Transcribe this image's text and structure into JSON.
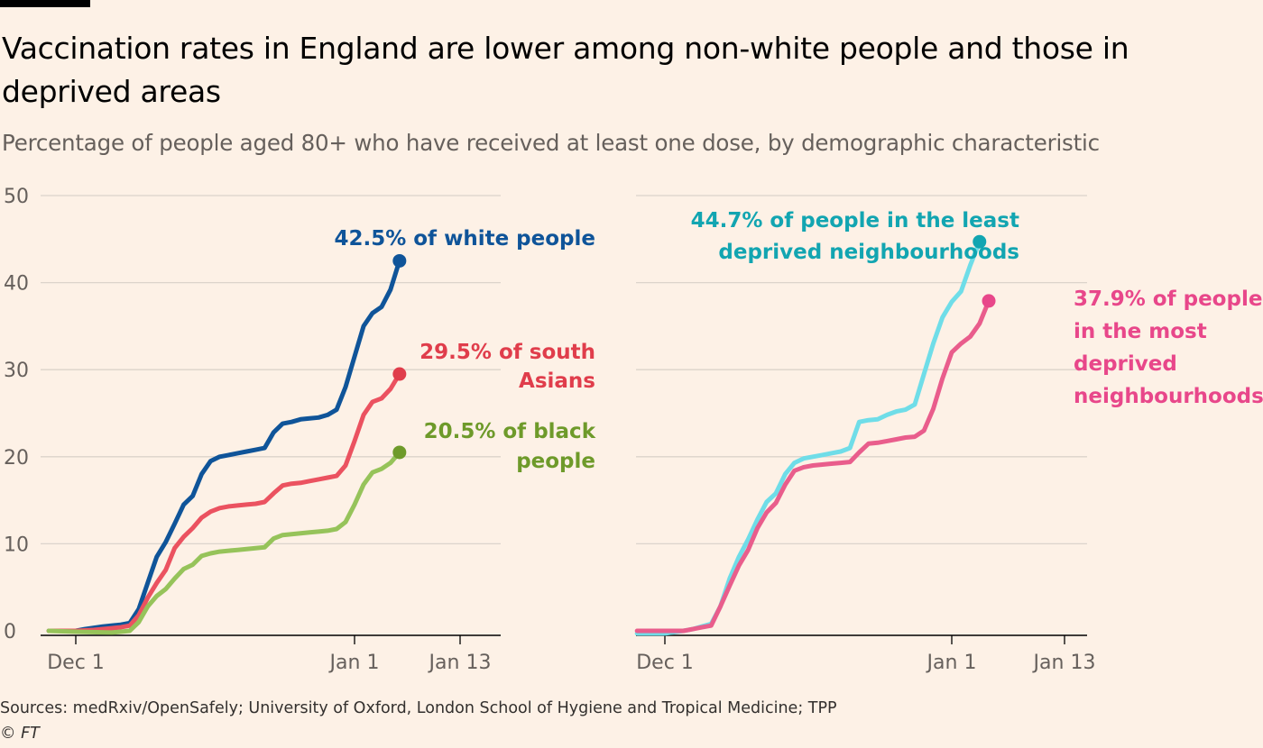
{
  "header": {
    "title": "Vaccination rates in England are lower among non-white people and those in deprived areas",
    "subtitle": "Percentage of people aged 80+ who have received at least one dose, by demographic characteristic"
  },
  "footer": {
    "source": "Sources: medRxiv/OpenSafely; University of Oxford, London School of Hygiene and Tropical Medicine; TPP",
    "copyright": "© FT"
  },
  "colors": {
    "background": "#fdf1e6",
    "white_people": "#0f5499",
    "south_asians": "#eb5260",
    "black_people": "#96c35a",
    "least_deprived": "#6fdde8",
    "most_deprived": "#e95d8c",
    "anno_white": "#0f5499",
    "anno_asian": "#e03d4b",
    "anno_black": "#6e9a2a",
    "anno_least": "#12a5b1",
    "anno_most": "#e8478a"
  },
  "chart_data": [
    {
      "type": "line",
      "x_ticks": [
        "Dec 1",
        "Jan 1",
        "Jan 13"
      ],
      "y_ticks": [
        "0",
        "10",
        "20",
        "30",
        "40",
        "50"
      ],
      "ylim": [
        0,
        50
      ],
      "grid": true,
      "series": [
        {
          "key": "white",
          "label": "42.5% of white people",
          "label_lines": [
            "42.5% of white people"
          ],
          "points": [
            [
              -3,
              0
            ],
            [
              0,
              0
            ],
            [
              1,
              0.2
            ],
            [
              3,
              0.5
            ],
            [
              5,
              0.7
            ],
            [
              6,
              0.9
            ],
            [
              7,
              2.5
            ],
            [
              8,
              5.5
            ],
            [
              9,
              8.5
            ],
            [
              10,
              10.2
            ],
            [
              11,
              12.3
            ],
            [
              12,
              14.5
            ],
            [
              13,
              15.5
            ],
            [
              14,
              18
            ],
            [
              15,
              19.5
            ],
            [
              16,
              20
            ],
            [
              17,
              20.2
            ],
            [
              18,
              20.4
            ],
            [
              19,
              20.6
            ],
            [
              20,
              20.8
            ],
            [
              21,
              21
            ],
            [
              22,
              22.8
            ],
            [
              23,
              23.8
            ],
            [
              24,
              24
            ],
            [
              25,
              24.3
            ],
            [
              26,
              24.4
            ],
            [
              27,
              24.5
            ],
            [
              28,
              24.8
            ],
            [
              29,
              25.4
            ],
            [
              30,
              28
            ],
            [
              31,
              31.5
            ],
            [
              32,
              35
            ],
            [
              33,
              36.5
            ],
            [
              34,
              37.2
            ],
            [
              35,
              39.2
            ],
            [
              36,
              42.5
            ]
          ]
        },
        {
          "key": "asian",
          "label": "29.5% of south Asians",
          "label_lines": [
            "29.5% of south",
            "Asians"
          ],
          "points": [
            [
              -3,
              0
            ],
            [
              0,
              0
            ],
            [
              2,
              0.1
            ],
            [
              4,
              0.3
            ],
            [
              5,
              0.4
            ],
            [
              6,
              0.6
            ],
            [
              7,
              1.8
            ],
            [
              8,
              3.8
            ],
            [
              9,
              5.5
            ],
            [
              10,
              7
            ],
            [
              11,
              9.5
            ],
            [
              12,
              10.8
            ],
            [
              13,
              11.8
            ],
            [
              14,
              13
            ],
            [
              15,
              13.7
            ],
            [
              16,
              14.1
            ],
            [
              17,
              14.3
            ],
            [
              18,
              14.4
            ],
            [
              19,
              14.5
            ],
            [
              20,
              14.6
            ],
            [
              21,
              14.8
            ],
            [
              22,
              15.8
            ],
            [
              23,
              16.7
            ],
            [
              24,
              16.9
            ],
            [
              25,
              17
            ],
            [
              26,
              17.2
            ],
            [
              27,
              17.4
            ],
            [
              28,
              17.6
            ],
            [
              29,
              17.8
            ],
            [
              30,
              19
            ],
            [
              31,
              21.8
            ],
            [
              32,
              24.8
            ],
            [
              33,
              26.3
            ],
            [
              34,
              26.7
            ],
            [
              35,
              27.8
            ],
            [
              36,
              29.5
            ]
          ]
        },
        {
          "key": "black",
          "label": "20.5% of black people",
          "label_lines": [
            "20.5% of black",
            "people"
          ],
          "points": [
            [
              -3,
              0
            ],
            [
              0,
              -0.1
            ],
            [
              4,
              -0.2
            ],
            [
              5,
              -0.1
            ],
            [
              6,
              0
            ],
            [
              7,
              1
            ],
            [
              8,
              2.8
            ],
            [
              9,
              4
            ],
            [
              10,
              4.8
            ],
            [
              11,
              6
            ],
            [
              12,
              7.1
            ],
            [
              13,
              7.6
            ],
            [
              14,
              8.6
            ],
            [
              15,
              8.9
            ],
            [
              16,
              9.1
            ],
            [
              17,
              9.2
            ],
            [
              18,
              9.3
            ],
            [
              19,
              9.4
            ],
            [
              20,
              9.5
            ],
            [
              21,
              9.6
            ],
            [
              22,
              10.6
            ],
            [
              23,
              11
            ],
            [
              24,
              11.1
            ],
            [
              25,
              11.2
            ],
            [
              26,
              11.3
            ],
            [
              27,
              11.4
            ],
            [
              28,
              11.5
            ],
            [
              29,
              11.7
            ],
            [
              30,
              12.5
            ],
            [
              31,
              14.5
            ],
            [
              32,
              16.8
            ],
            [
              33,
              18.2
            ],
            [
              34,
              18.6
            ],
            [
              35,
              19.3
            ],
            [
              36,
              20.5
            ]
          ]
        }
      ]
    },
    {
      "type": "line",
      "x_ticks": [
        "Dec 1",
        "Jan 1",
        "Jan 13"
      ],
      "y_ticks": [
        "0",
        "10",
        "20",
        "30",
        "40",
        "50"
      ],
      "ylim": [
        0,
        50
      ],
      "grid": true,
      "series": [
        {
          "key": "least",
          "label": "44.7% of people in the least deprived neighbourhoods",
          "label_lines": [
            "44.7% of people in the least",
            "deprived neighbourhoods"
          ],
          "points": [
            [
              -3,
              -0.3
            ],
            [
              0,
              -0.3
            ],
            [
              2,
              0
            ],
            [
              3,
              0.2
            ],
            [
              4,
              0.5
            ],
            [
              5,
              0.8
            ],
            [
              6,
              2.8
            ],
            [
              7,
              6
            ],
            [
              8,
              8.5
            ],
            [
              9,
              10.5
            ],
            [
              10,
              12.8
            ],
            [
              11,
              14.8
            ],
            [
              12,
              15.8
            ],
            [
              13,
              18
            ],
            [
              14,
              19.3
            ],
            [
              15,
              19.8
            ],
            [
              16,
              20
            ],
            [
              17,
              20.2
            ],
            [
              18,
              20.4
            ],
            [
              19,
              20.6
            ],
            [
              20,
              21
            ],
            [
              21,
              24
            ],
            [
              22,
              24.2
            ],
            [
              23,
              24.3
            ],
            [
              24,
              24.8
            ],
            [
              25,
              25.2
            ],
            [
              26,
              25.4
            ],
            [
              27,
              26
            ],
            [
              28,
              29.5
            ],
            [
              29,
              33
            ],
            [
              30,
              36
            ],
            [
              31,
              37.8
            ],
            [
              32,
              39
            ],
            [
              33,
              42
            ],
            [
              34,
              44.7
            ]
          ]
        },
        {
          "key": "most",
          "label": "37.9% of people in the most deprived neighbourhoods",
          "label_lines": [
            "37.9% of people",
            "in the most",
            "deprived",
            "neighbourhoods"
          ],
          "points": [
            [
              -3,
              0
            ],
            [
              0,
              0
            ],
            [
              2,
              0
            ],
            [
              3,
              0.2
            ],
            [
              4,
              0.4
            ],
            [
              5,
              0.6
            ],
            [
              6,
              2.8
            ],
            [
              7,
              5.2
            ],
            [
              8,
              7.5
            ],
            [
              9,
              9.3
            ],
            [
              10,
              11.8
            ],
            [
              11,
              13.6
            ],
            [
              12,
              14.7
            ],
            [
              13,
              16.8
            ],
            [
              14,
              18.4
            ],
            [
              15,
              18.8
            ],
            [
              16,
              19
            ],
            [
              17,
              19.1
            ],
            [
              18,
              19.2
            ],
            [
              19,
              19.3
            ],
            [
              20,
              19.4
            ],
            [
              21,
              20.5
            ],
            [
              22,
              21.5
            ],
            [
              23,
              21.6
            ],
            [
              24,
              21.8
            ],
            [
              25,
              22
            ],
            [
              26,
              22.2
            ],
            [
              27,
              22.3
            ],
            [
              28,
              23
            ],
            [
              29,
              25.5
            ],
            [
              30,
              29
            ],
            [
              31,
              32
            ],
            [
              32,
              33
            ],
            [
              33,
              33.8
            ],
            [
              34,
              35.3
            ],
            [
              35,
              37.9
            ]
          ]
        }
      ]
    }
  ]
}
